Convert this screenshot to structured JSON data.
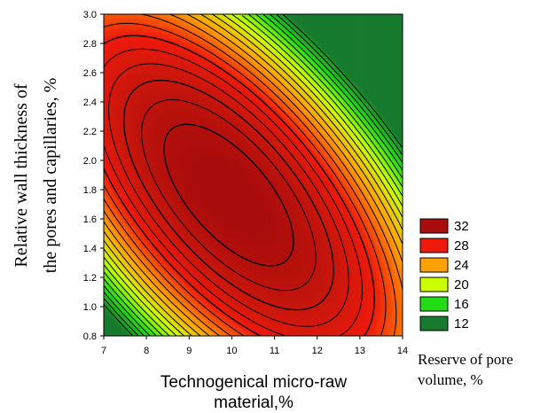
{
  "chart_data": {
    "type": "heatmap",
    "subtype": "contour",
    "title": "",
    "xlabel_lines": [
      "Technogenical micro-raw",
      "material,%"
    ],
    "ylabel_lines": [
      "Relative wall thickness of",
      "the pores and capillaries,  %"
    ],
    "xlim": [
      7,
      14
    ],
    "ylim": [
      0.8,
      3.0
    ],
    "x_ticks": [
      "7",
      "8",
      "9",
      "10",
      "11",
      "12",
      "13",
      "14"
    ],
    "y_ticks": [
      "0.8",
      "1.0",
      "1.2",
      "1.4",
      "1.6",
      "1.8",
      "2.0",
      "2.2",
      "2.4",
      "2.6",
      "2.8",
      "3.0"
    ],
    "legend": {
      "title_lines": [
        "Reserve of pore",
        "volume, %"
      ],
      "placement": "right",
      "levels": [
        {
          "label": "32",
          "color": "#a80c0c"
        },
        {
          "label": "28",
          "color": "#ee1a0c"
        },
        {
          "label": "24",
          "color": "#ffa200"
        },
        {
          "label": "20",
          "color": "#ccff00"
        },
        {
          "label": "16",
          "color": "#22dd16"
        },
        {
          "label": "12",
          "color": "#177a2e"
        }
      ]
    },
    "contour_lines_color": "#000000",
    "surface": {
      "form": "quadratic",
      "peak_value": 34,
      "peak_x": 10.2,
      "peak_y": 1.85,
      "min_value_top_right": 13,
      "min_value_bottom_left": 17
    }
  }
}
